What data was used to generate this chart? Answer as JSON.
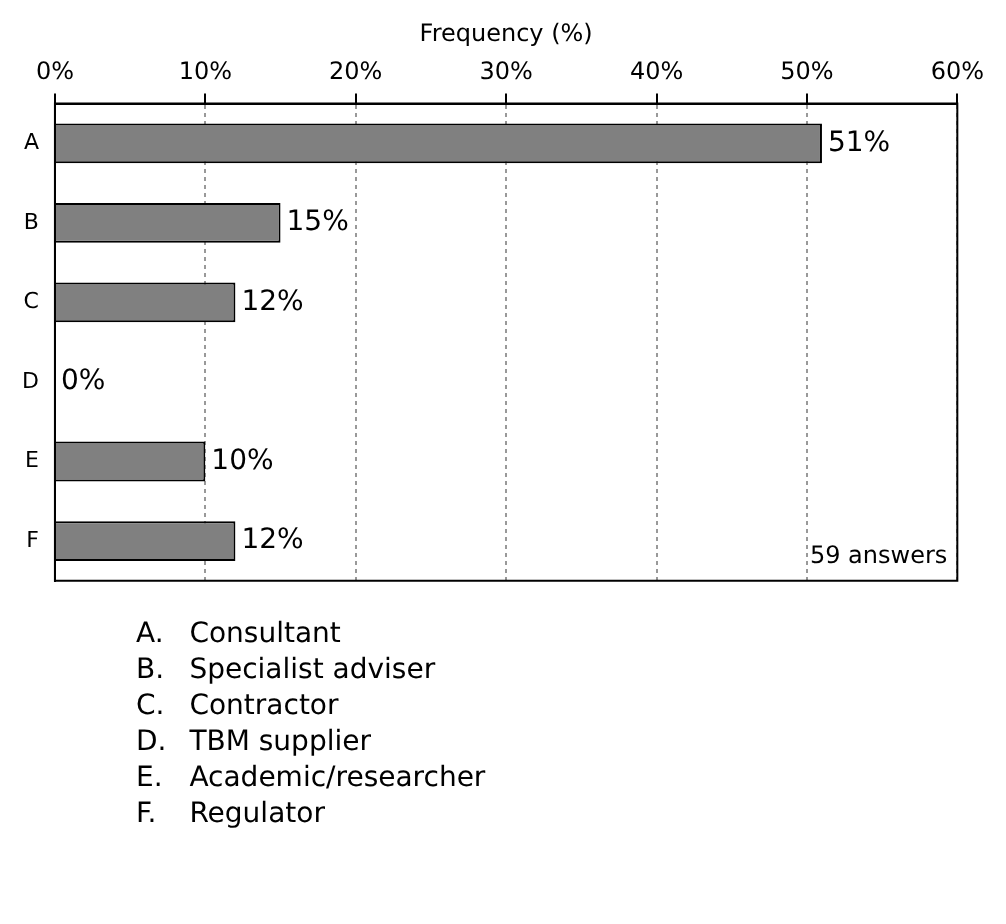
{
  "chart_data": {
    "type": "bar",
    "orientation": "horizontal",
    "xlabel": "Frequency (%)",
    "categories": [
      "A",
      "B",
      "C",
      "D",
      "E",
      "F"
    ],
    "values": [
      51,
      15,
      12,
      0,
      10,
      12
    ],
    "value_labels": [
      "51%",
      "15%",
      "12%",
      "0%",
      "10%",
      "12%"
    ],
    "color": "#808080",
    "xlim": [
      0,
      60
    ],
    "xticks": [
      {
        "value": 0,
        "label": "0%"
      },
      {
        "value": 10,
        "label": "10%"
      },
      {
        "value": 20,
        "label": "20%"
      },
      {
        "value": 30,
        "label": "30%"
      },
      {
        "value": 40,
        "label": "40%"
      },
      {
        "value": 50,
        "label": "50%"
      },
      {
        "value": 60,
        "label": "60%"
      }
    ],
    "grid": "x",
    "legend": false,
    "annotations": [
      "59 answers",
      "A.\tConsultant",
      "B.\tSpecialist adviser",
      "C.\tContractor",
      "D.\tTBM supplier",
      "E.\tAcademic/researcher",
      "F.\tRegulator"
    ]
  }
}
